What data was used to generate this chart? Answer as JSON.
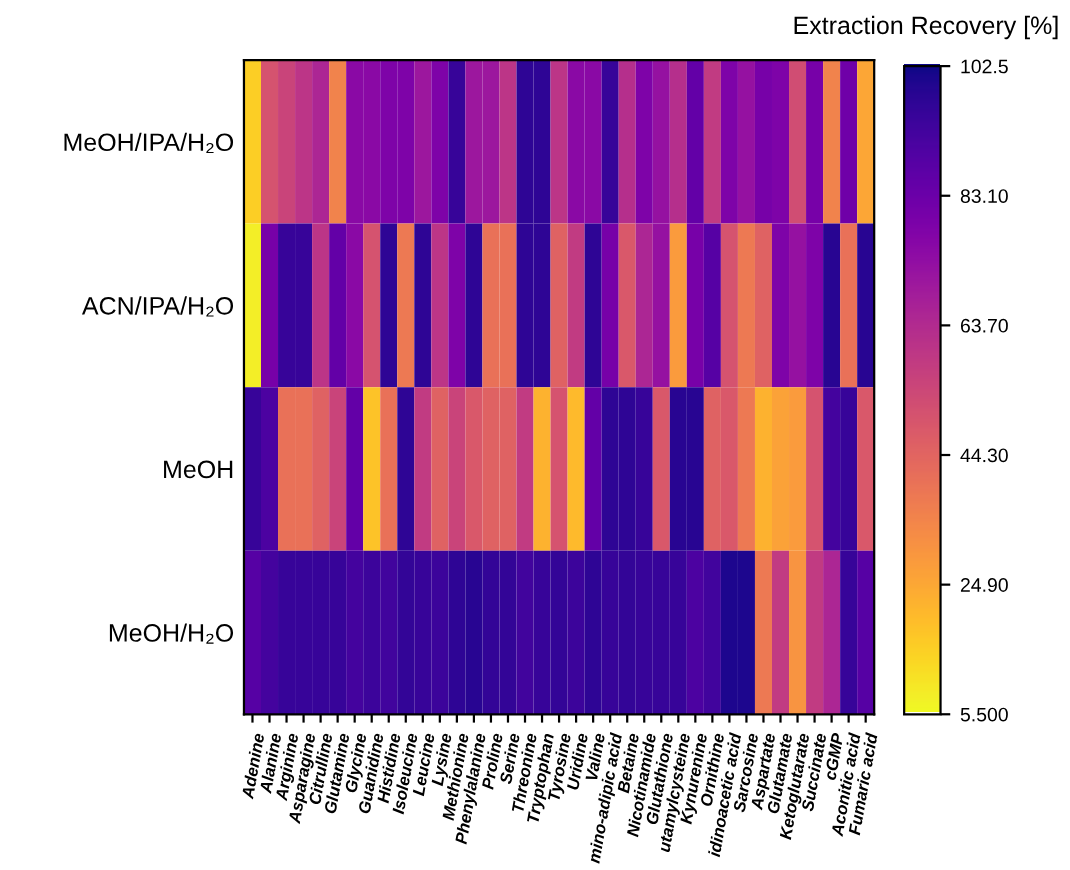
{
  "chart_data": {
    "type": "heatmap",
    "clabel": "Extraction Recovery [%]",
    "categories": [
      "Adenine",
      "Alanine",
      "Arginine",
      "Asparagine",
      "Citrulline",
      "Glutamine",
      "Glycine",
      "Guanidine",
      "Histidine",
      "Isoleucine",
      "Leucine",
      "Lysine",
      "Methionine",
      "Phenylalanine",
      "Proline",
      "Serine",
      "Threonine",
      "Tryptophan",
      "Tyrosine",
      "Uridine",
      "Valine",
      "mino-adipic acid",
      "Betaine",
      "Nicotinamide",
      "Glutathione",
      "utamylcysteine",
      "Kynurenine",
      "Ornithine",
      "idinoacetic acid",
      "Sarcosine",
      "Aspartate",
      "Glutamate",
      "Ketoglutarate",
      "Succinate",
      "cGMP",
      "Aconitic acid",
      "Fumaric acid"
    ],
    "y_categories": [
      "MeOH/IPA/H₂O",
      "ACN/IPA/H₂O",
      "MeOH",
      "MeOH/H₂O"
    ],
    "cells": [
      [
        15,
        50,
        55,
        60,
        65,
        35,
        75,
        75,
        78,
        78,
        70,
        78,
        95,
        70,
        70,
        60,
        97,
        97,
        60,
        75,
        75,
        95,
        62,
        78,
        72,
        62,
        85,
        58,
        78,
        72,
        80,
        78,
        52,
        80,
        35,
        82,
        25
      ],
      [
        8,
        80,
        95,
        95,
        60,
        85,
        75,
        50,
        97,
        38,
        97,
        60,
        78,
        97,
        40,
        40,
        97,
        97,
        45,
        58,
        97,
        80,
        48,
        65,
        72,
        28,
        80,
        88,
        50,
        38,
        45,
        78,
        72,
        78,
        98,
        40,
        98
      ],
      [
        95,
        90,
        40,
        40,
        45,
        55,
        85,
        18,
        40,
        97,
        58,
        45,
        55,
        48,
        45,
        45,
        58,
        22,
        50,
        20,
        85,
        97,
        97,
        95,
        48,
        98,
        98,
        45,
        48,
        38,
        22,
        26,
        28,
        50,
        92,
        95,
        48
      ],
      [
        88,
        92,
        95,
        95,
        95,
        95,
        92,
        94,
        93,
        96,
        95,
        94,
        97,
        98,
        96,
        96,
        93,
        95,
        96,
        94,
        97,
        95,
        96,
        95,
        95,
        95,
        90,
        93,
        100,
        100,
        38,
        58,
        30,
        58,
        65,
        95,
        88
      ]
    ],
    "clim": [
      5.5,
      102.5
    ],
    "cticks": [
      {
        "value": 102.5,
        "label": "102.5"
      },
      {
        "value": 83.1,
        "label": "83.10"
      },
      {
        "value": 63.7,
        "label": "63.70"
      },
      {
        "value": 44.3,
        "label": "44.30"
      },
      {
        "value": 24.9,
        "label": "24.90"
      },
      {
        "value": 5.5,
        "label": "5.500"
      }
    ]
  }
}
